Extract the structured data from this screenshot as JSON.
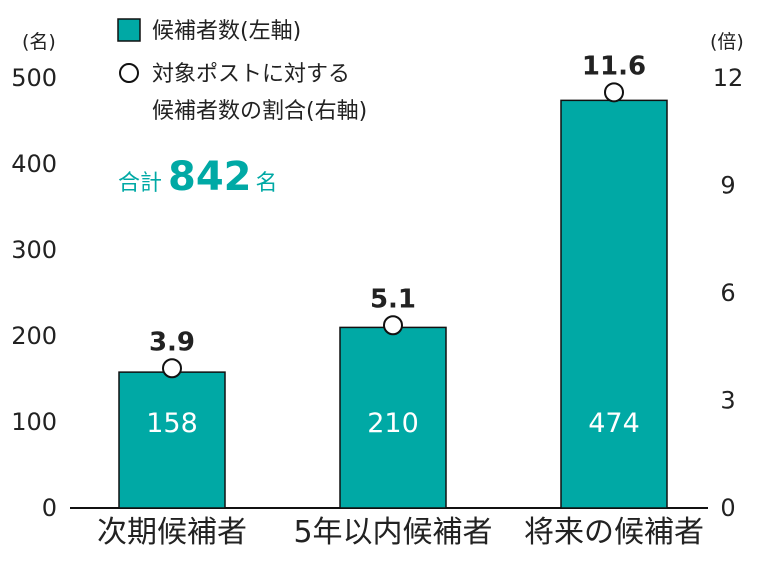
{
  "colors": {
    "bar": "#00A9A5",
    "bar_edge": "#111111",
    "accent": "#00A9A5",
    "axis": "#111111"
  },
  "chart_data": {
    "type": "bar",
    "categories": [
      "次期候補者",
      "5年以内候補者",
      "将来の候補者"
    ],
    "series": [
      {
        "name": "候補者数(左軸)",
        "type": "bar",
        "axis": "left",
        "values": [
          158,
          210,
          474
        ]
      },
      {
        "name": "対象ポストに対する候補者数の割合(右軸)",
        "type": "marker",
        "axis": "right",
        "values": [
          3.9,
          5.1,
          11.6
        ]
      }
    ],
    "left_axis": {
      "unit": "(名)",
      "ylim": [
        0,
        500
      ],
      "ticks": [
        "0",
        "100",
        "200",
        "300",
        "400",
        "500"
      ]
    },
    "right_axis": {
      "unit": "(倍)",
      "ylim": [
        0,
        12
      ],
      "ticks": [
        "0",
        "3",
        "6",
        "9",
        "12"
      ]
    },
    "bar_labels": [
      "158",
      "210",
      "474"
    ],
    "point_labels": [
      "3.9",
      "5.1",
      "11.6"
    ],
    "legend": {
      "bar": "候補者数(左軸)",
      "marker_line1": "対象ポストに対する",
      "marker_line2": "候補者数の割合(右軸)"
    },
    "total": {
      "prefix": "合計",
      "value": "842",
      "suffix": "名"
    },
    "grid": false
  }
}
